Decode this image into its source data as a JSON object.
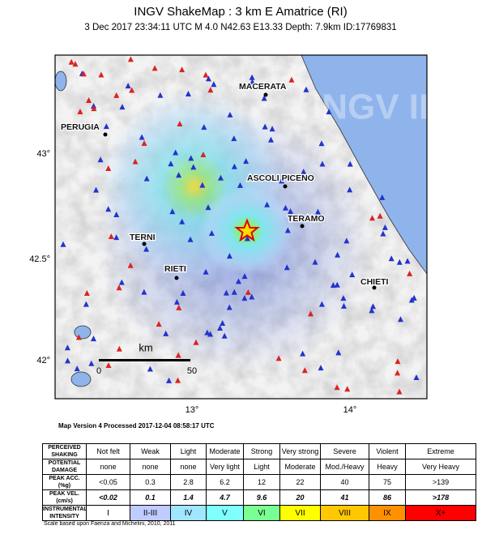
{
  "header": {
    "title": "INGV ShakeMap : 3 km E Amatrice (RI)",
    "subtitle": "3 Dec 2017 23:34:11 UTC   M 4.0   N42.63 E13.33   Depth: 7.9km   ID:17769831"
  },
  "map": {
    "cities": [
      "MACERATA",
      "PERUGIA",
      "ASCOLI PICENO",
      "TERAMO",
      "TERNI",
      "RIETI",
      "CHIETI"
    ],
    "lat_labels": [
      "43°",
      "42.5°",
      "42°"
    ],
    "lon_labels": [
      "13°",
      "14°"
    ],
    "scale": {
      "unit": "km",
      "labels": [
        "0",
        "50"
      ]
    },
    "watermark": "INGV II"
  },
  "version": "Map Version 4 Processed 2017-12-04 08:58:17 UTC",
  "table": {
    "rows": [
      [
        "PERCEIVED SHAKING",
        "Not felt",
        "Weak",
        "Light",
        "Moderate",
        "Strong",
        "Very strong",
        "Severe",
        "Violent",
        "Extreme"
      ],
      [
        "POTENTIAL DAMAGE",
        "none",
        "none",
        "none",
        "Very light",
        "Light",
        "Moderate",
        "Mod./Heavy",
        "Heavy",
        "Very Heavy"
      ],
      [
        "PEAK ACC.(%g)",
        "<0.05",
        "0.3",
        "2.8",
        "6.2",
        "12",
        "22",
        "40",
        "75",
        ">139"
      ],
      [
        "PEAK VEL.(cm/s)",
        "<0.02",
        "0.1",
        "1.4",
        "4.7",
        "9.6",
        "20",
        "41",
        "86",
        ">178"
      ],
      [
        "INSTRUMENTAL INTENSITY",
        "I",
        "II-III",
        "IV",
        "V",
        "VI",
        "VII",
        "VIII",
        "IX",
        "X+"
      ]
    ],
    "intensity_colors": [
      "#ffffff",
      "#bfccff",
      "#a0e6ff",
      "#80ffff",
      "#7aff93",
      "#ffff00",
      "#ffc800",
      "#ff9100",
      "#ff0000"
    ]
  },
  "footnote": "Scale based upon Faenza and Michelini, 2010, 2011"
}
